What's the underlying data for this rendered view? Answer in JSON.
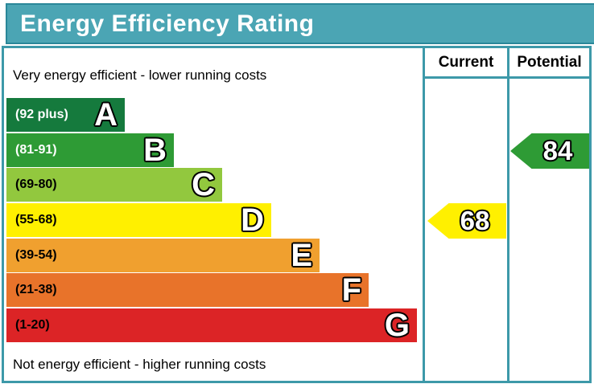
{
  "title": "Energy Efficiency Rating",
  "table": {
    "current_header": "Current",
    "potential_header": "Potential"
  },
  "notes": {
    "top": "Very energy efficient - lower running costs",
    "bottom": "Not energy efficient - higher running costs"
  },
  "colors": {
    "title_bar_fill": "#4ba5b4",
    "title_bar_border": "#2a8799",
    "chart_border": "#3d99a9",
    "current_arrow": "#fff000",
    "potential_arrow": "#2e9b35"
  },
  "chart_data": {
    "type": "bar",
    "title": "Energy Efficiency Rating",
    "orientation": "horizontal",
    "bands": [
      {
        "grade": "A",
        "range_label": "(92 plus)",
        "min": 92,
        "max": 100,
        "color": "#157a3d",
        "label_color": "#ffffff"
      },
      {
        "grade": "B",
        "range_label": "(81-91)",
        "min": 81,
        "max": 91,
        "color": "#2e9b35",
        "label_color": "#ffffff"
      },
      {
        "grade": "C",
        "range_label": "(69-80)",
        "min": 69,
        "max": 80,
        "color": "#92c83e",
        "label_color": "#000000"
      },
      {
        "grade": "D",
        "range_label": "(55-68)",
        "min": 55,
        "max": 68,
        "color": "#fff000",
        "label_color": "#000000"
      },
      {
        "grade": "E",
        "range_label": "(39-54)",
        "min": 39,
        "max": 54,
        "color": "#f0a02f",
        "label_color": "#000000"
      },
      {
        "grade": "F",
        "range_label": "(21-38)",
        "min": 21,
        "max": 38,
        "color": "#e8732a",
        "label_color": "#000000"
      },
      {
        "grade": "G",
        "range_label": "(1-20)",
        "min": 1,
        "max": 20,
        "color": "#dc2426",
        "label_color": "#000000"
      }
    ],
    "current": {
      "value": "68",
      "grade": "D",
      "column": "Current"
    },
    "potential": {
      "value": "84",
      "grade": "B",
      "column": "Potential"
    }
  }
}
